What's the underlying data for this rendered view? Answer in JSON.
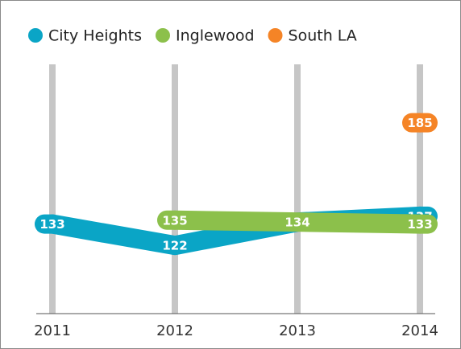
{
  "chart_data": {
    "type": "line",
    "categories": [
      "2011",
      "2012",
      "2013",
      "2014"
    ],
    "series": [
      {
        "name": "City Heights",
        "color": "#0aa5c6",
        "values": [
          133,
          122,
          134,
          137
        ]
      },
      {
        "name": "Inglewood",
        "color": "#8cc04b",
        "values": [
          null,
          135,
          134,
          133
        ]
      },
      {
        "name": "South LA",
        "color": "#f58426",
        "values": [
          null,
          null,
          null,
          185
        ]
      }
    ],
    "ylim": [
      87,
      215
    ]
  }
}
